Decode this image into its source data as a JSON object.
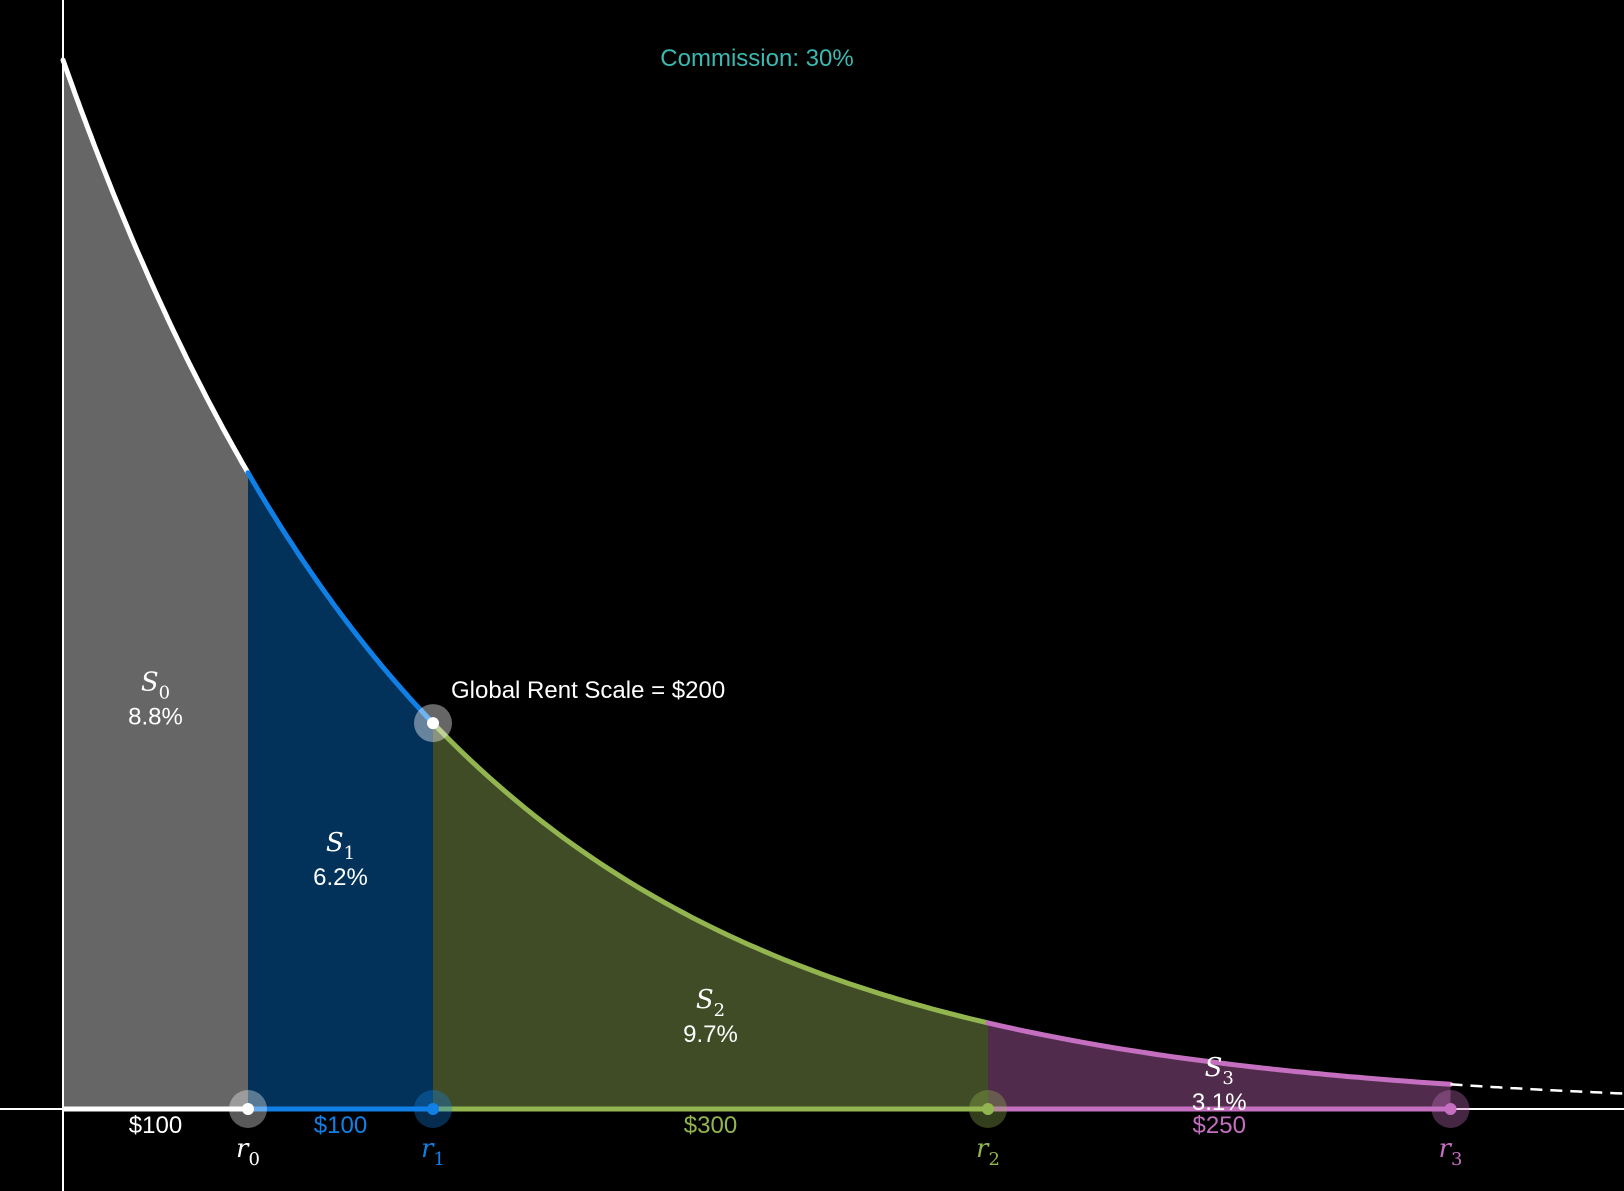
{
  "commission_label": "Commission: 30%",
  "scale_label": "Global Rent Scale = $200",
  "colors": {
    "background": "#000000",
    "axis": "#ffffff",
    "commission": "#3bb8b0",
    "s0_line": "#ffffff",
    "s0_fill": "#666666",
    "s1_line": "#1180e6",
    "s1_fill": "#02325a",
    "s2_line": "#93b54f",
    "s2_fill": "#404c25",
    "s3_line": "#c56fc0",
    "s3_fill": "#512b4c"
  },
  "chart_data": {
    "type": "area",
    "title": "",
    "xlabel": "",
    "ylabel": "",
    "x_unit": "dollars",
    "xlim": [
      0,
      1000
    ],
    "decay_scale": 200,
    "curve_tail": "dashed",
    "segments": [
      {
        "name": "S",
        "sub": "0",
        "share": "8.8%",
        "width_label": "$100",
        "width": 100,
        "point": "r",
        "point_sub": "0",
        "line_color": "#ffffff",
        "fill_color": "#666666",
        "label_color": "#ffffff"
      },
      {
        "name": "S",
        "sub": "1",
        "share": "6.2%",
        "width_label": "$100",
        "width": 100,
        "point": "r",
        "point_sub": "1",
        "line_color": "#1180e6",
        "fill_color": "#02325a",
        "label_color": "#1180e6"
      },
      {
        "name": "S",
        "sub": "2",
        "share": "9.7%",
        "width_label": "$300",
        "width": 300,
        "point": "r",
        "point_sub": "2",
        "line_color": "#93b54f",
        "fill_color": "#404c25",
        "label_color": "#93b54f"
      },
      {
        "name": "S",
        "sub": "3",
        "share": "3.1%",
        "width_label": "$250",
        "width": 250,
        "point": "r",
        "point_sub": "3",
        "line_color": "#c56fc0",
        "fill_color": "#512b4c",
        "label_color": "#c56fc0"
      }
    ]
  }
}
